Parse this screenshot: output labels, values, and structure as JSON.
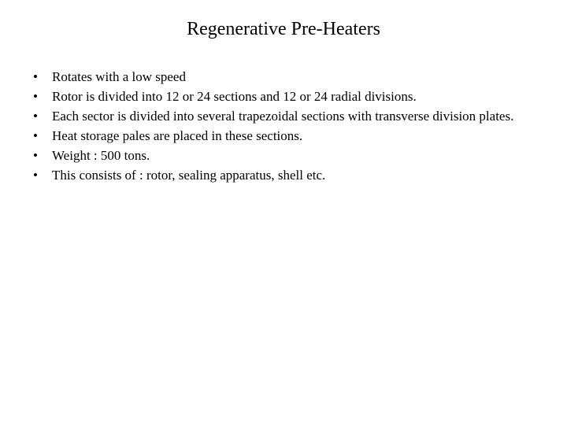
{
  "title": "Regenerative Pre-Heaters",
  "bullets": [
    "Rotates with a low speed",
    "Rotor is divided into 12 or  24 sections and 12 or 24 radial divisions.",
    "Each sector is divided into several trapezoidal sections with transverse division plates.",
    "Heat storage pales are placed in these sections.",
    "Weight : 500 tons.",
    "This consists of : rotor, sealing apparatus, shell etc."
  ],
  "colors": {
    "background": "#ffffff",
    "text": "#000000"
  },
  "typography": {
    "title_fontsize": 24,
    "body_fontsize": 17,
    "font_family": "Times New Roman"
  }
}
